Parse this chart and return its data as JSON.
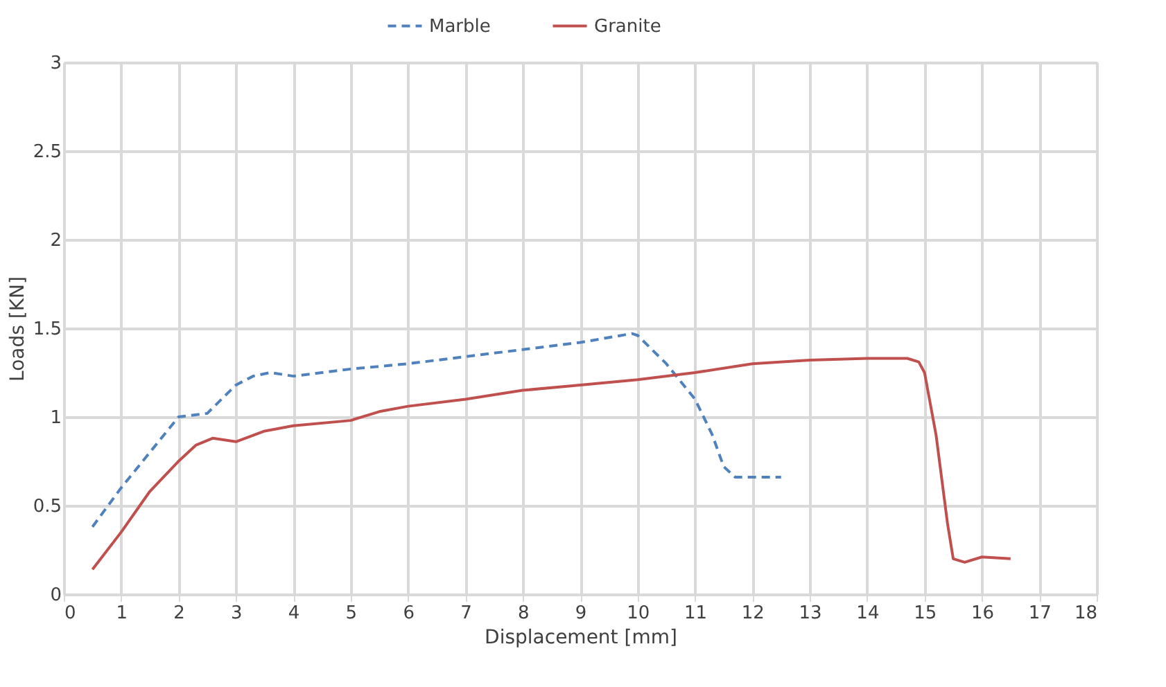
{
  "chart_data": {
    "type": "line",
    "xlabel": "Displacement [mm]",
    "ylabel": "Loads [KN]",
    "xlim": [
      0,
      18
    ],
    "xticks": [
      0,
      1,
      2,
      3,
      4,
      5,
      6,
      7,
      8,
      9,
      10,
      11,
      12,
      13,
      14,
      15,
      16,
      17,
      18
    ],
    "ylim": [
      0,
      3
    ],
    "yticks": [
      0,
      0.5,
      1,
      1.5,
      2,
      2.5,
      3
    ],
    "grid": true,
    "legend": "top",
    "marker": "none",
    "series": [
      {
        "name": "Marble",
        "color": "#4f81bd",
        "line_style": "dashed",
        "x": [
          0.5,
          1,
          1.5,
          2,
          2.5,
          3,
          3.3,
          3.6,
          4,
          5,
          6,
          7,
          8,
          9,
          9.9,
          10,
          10.5,
          11,
          11.3,
          11.5,
          11.7,
          12,
          12.5
        ],
        "values": [
          0.38,
          0.6,
          0.8,
          1.0,
          1.02,
          1.18,
          1.23,
          1.25,
          1.23,
          1.27,
          1.3,
          1.34,
          1.38,
          1.42,
          1.47,
          1.46,
          1.3,
          1.1,
          0.9,
          0.72,
          0.66,
          0.66,
          0.66
        ]
      },
      {
        "name": "Granite",
        "color": "#c0504d",
        "line_style": "solid",
        "x": [
          0.5,
          1,
          1.5,
          2,
          2.3,
          2.6,
          3,
          3.5,
          4,
          5,
          5.5,
          6,
          7,
          8,
          9,
          10,
          11,
          12,
          13,
          14,
          14.7,
          14.9,
          15,
          15.2,
          15.4,
          15.5,
          15.7,
          16,
          16.5
        ],
        "values": [
          0.14,
          0.35,
          0.58,
          0.75,
          0.84,
          0.88,
          0.86,
          0.92,
          0.95,
          0.98,
          1.03,
          1.06,
          1.1,
          1.15,
          1.18,
          1.21,
          1.25,
          1.3,
          1.32,
          1.33,
          1.33,
          1.31,
          1.25,
          0.9,
          0.4,
          0.2,
          0.18,
          0.21,
          0.2
        ]
      }
    ]
  }
}
